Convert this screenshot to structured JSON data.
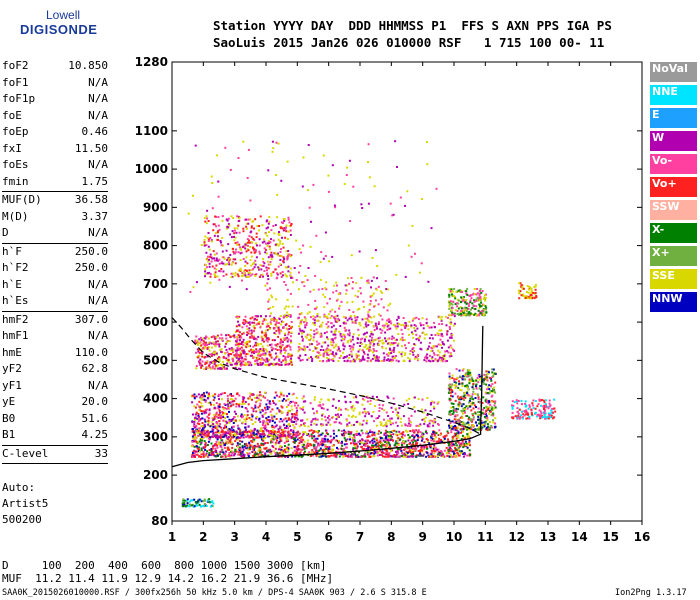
{
  "logo": {
    "line1": "Lowell",
    "line2": "DIGISONDE"
  },
  "header": {
    "line1": "Station YYYY DAY  DDD HHMMSS P1  FFS S AXN PPS IGA PS",
    "line2": "SaoLuis 2015 Jan26 026 010000 RSF   1 715 100 00- 11"
  },
  "params": [
    {
      "label": "foF2",
      "value": "10.850"
    },
    {
      "label": "foF1",
      "value": "N/A"
    },
    {
      "label": "foF1p",
      "value": "N/A"
    },
    {
      "label": "foE",
      "value": "N/A"
    },
    {
      "label": "foEp",
      "value": "0.46"
    },
    {
      "label": "fxI",
      "value": "11.50"
    },
    {
      "label": "foEs",
      "value": "N/A"
    },
    {
      "label": "fmin",
      "value": "1.75"
    },
    {
      "sep": true
    },
    {
      "label": "MUF(D)",
      "value": "36.58"
    },
    {
      "label": "M(D)",
      "value": "3.37"
    },
    {
      "label": "D",
      "value": "N/A"
    },
    {
      "sep": true
    },
    {
      "label": "h`F",
      "value": "250.0"
    },
    {
      "label": "h`F2",
      "value": "250.0"
    },
    {
      "label": "h`E",
      "value": "N/A"
    },
    {
      "label": "h`Es",
      "value": "N/A"
    },
    {
      "sep": true
    },
    {
      "label": "hmF2",
      "value": "307.0"
    },
    {
      "label": "hmF1",
      "value": "N/A"
    },
    {
      "label": "hmE",
      "value": "110.0"
    },
    {
      "label": "yF2",
      "value": "62.8"
    },
    {
      "label": "yF1",
      "value": "N/A"
    },
    {
      "label": "yE",
      "value": "20.0"
    },
    {
      "label": "B0",
      "value": "51.6"
    },
    {
      "label": "B1",
      "value": "4.25"
    },
    {
      "sep": true
    },
    {
      "label": "C-level",
      "value": "33"
    },
    {
      "sep": true
    }
  ],
  "auto": [
    "Auto:",
    "Artist5",
    "500200"
  ],
  "legend": [
    {
      "label": "NoVal",
      "color": "#9a9a9a"
    },
    {
      "label": "NNE",
      "color": "#00e5ff"
    },
    {
      "label": "E",
      "color": "#1ea0ff"
    },
    {
      "label": "W",
      "color": "#b000b0"
    },
    {
      "label": "Vo-",
      "color": "#ff40a0"
    },
    {
      "label": "Vo+",
      "color": "#ff2020"
    },
    {
      "label": "SSW",
      "color": "#ffb0a0"
    },
    {
      "label": "X-",
      "color": "#008000"
    },
    {
      "label": "X+",
      "color": "#70b040"
    },
    {
      "label": "SSE",
      "color": "#d8d800"
    },
    {
      "label": "NNW",
      "color": "#0000c0"
    }
  ],
  "bottom": {
    "dist": "D     100  200  400  600  800 1000 1500 3000 [km]",
    "muf": "MUF  11.2 11.4 11.9 12.9 14.2 16.2 21.9 36.6 [MHz]"
  },
  "footer": {
    "left": "SAA0K_2015026010000.RSF / 300fx256h 50 kHz 5.0 km / DPS-4 SAA0K 903 / 2.6 S 315.8 E",
    "right": "Ion2Png 1.3.17"
  },
  "chart_data": {
    "type": "scatter",
    "title": "",
    "xlabel": "",
    "ylabel": "",
    "xlim": [
      1,
      16
    ],
    "ylim": [
      80,
      1280
    ],
    "x_ticks": [
      1,
      2,
      3,
      4,
      5,
      6,
      7,
      8,
      9,
      10,
      11,
      12,
      13,
      14,
      15,
      16
    ],
    "y_ticks": [
      80,
      200,
      300,
      400,
      500,
      600,
      700,
      800,
      900,
      1000,
      1100,
      1280
    ],
    "trace_solid": [
      [
        1.0,
        222
      ],
      [
        1.5,
        233
      ],
      [
        2.0,
        238
      ],
      [
        3,
        243
      ],
      [
        4,
        248
      ],
      [
        5,
        252
      ],
      [
        6,
        257
      ],
      [
        7,
        263
      ],
      [
        8,
        270
      ],
      [
        9,
        278
      ],
      [
        10,
        288
      ],
      [
        10.5,
        295
      ],
      [
        10.85,
        307
      ],
      [
        10.85,
        330
      ],
      [
        10.88,
        400
      ],
      [
        10.9,
        500
      ],
      [
        10.92,
        590
      ]
    ],
    "trace_dashed": [
      [
        1.0,
        612
      ],
      [
        1.3,
        585
      ],
      [
        1.6,
        555
      ],
      [
        2.0,
        520
      ],
      [
        2.5,
        495
      ],
      [
        3,
        478
      ],
      [
        4,
        455
      ],
      [
        5,
        440
      ],
      [
        6,
        425
      ],
      [
        7,
        408
      ],
      [
        8,
        388
      ],
      [
        9,
        365
      ],
      [
        10,
        338
      ],
      [
        10.5,
        322
      ],
      [
        10.85,
        307
      ]
    ],
    "clusters": [
      {
        "x": [
          1.6,
          10.5
        ],
        "y": [
          250,
          320
        ],
        "n": 1600,
        "colors": [
          "#ff2020",
          "#ff40a0",
          "#b000b0",
          "#ff2020",
          "#0000c0",
          "#d8d800",
          "#008000"
        ]
      },
      {
        "x": [
          1.6,
          5.0
        ],
        "y": [
          300,
          420
        ],
        "n": 700,
        "colors": [
          "#ff2020",
          "#b000b0",
          "#0000c0",
          "#d8d800",
          "#ff40a0"
        ]
      },
      {
        "x": [
          1.7,
          3.2
        ],
        "y": [
          480,
          570
        ],
        "n": 260,
        "colors": [
          "#ff2020",
          "#b000b0",
          "#ff40a0",
          "#d8d800"
        ]
      },
      {
        "x": [
          3.0,
          4.8
        ],
        "y": [
          490,
          620
        ],
        "n": 450,
        "colors": [
          "#ff40a0",
          "#d8d800",
          "#b000b0",
          "#ff2020"
        ]
      },
      {
        "x": [
          5.0,
          10.0
        ],
        "y": [
          500,
          620
        ],
        "n": 700,
        "colors": [
          "#d8d800",
          "#ff40a0",
          "#b000b0"
        ]
      },
      {
        "x": [
          2.0,
          4.8
        ],
        "y": [
          720,
          880
        ],
        "n": 420,
        "colors": [
          "#d8d800",
          "#ff40a0",
          "#b000b0",
          "#ff2020"
        ]
      },
      {
        "x": [
          4.0,
          8.0
        ],
        "y": [
          600,
          720
        ],
        "n": 160,
        "colors": [
          "#d8d800",
          "#ff40a0"
        ]
      },
      {
        "x": [
          9.8,
          11.0
        ],
        "y": [
          620,
          690
        ],
        "n": 220,
        "colors": [
          "#d8d800",
          "#70b040",
          "#008000",
          "#ff40a0"
        ]
      },
      {
        "x": [
          12.0,
          12.6
        ],
        "y": [
          665,
          705
        ],
        "n": 60,
        "colors": [
          "#d8d800",
          "#ff2020"
        ]
      },
      {
        "x": [
          9.8,
          11.3
        ],
        "y": [
          320,
          480
        ],
        "n": 500,
        "colors": [
          "#d8d800",
          "#70b040",
          "#008000",
          "#ff40a0",
          "#ff2020",
          "#0000c0"
        ]
      },
      {
        "x": [
          11.8,
          13.2
        ],
        "y": [
          350,
          400
        ],
        "n": 150,
        "colors": [
          "#ff2020",
          "#ff40a0",
          "#00e5ff"
        ]
      },
      {
        "x": [
          5.0,
          9.5
        ],
        "y": [
          330,
          410
        ],
        "n": 260,
        "colors": [
          "#d8d800",
          "#ff40a0",
          "#b000b0"
        ]
      },
      {
        "x": [
          1.3,
          2.3
        ],
        "y": [
          120,
          140
        ],
        "n": 70,
        "colors": [
          "#70b040",
          "#008000",
          "#0000c0",
          "#00e5ff"
        ]
      },
      {
        "x": [
          1.5,
          9.5
        ],
        "y": [
          680,
          1080
        ],
        "n": 150,
        "colors": [
          "#d8d800",
          "#ff40a0",
          "#b000b0"
        ]
      }
    ]
  }
}
